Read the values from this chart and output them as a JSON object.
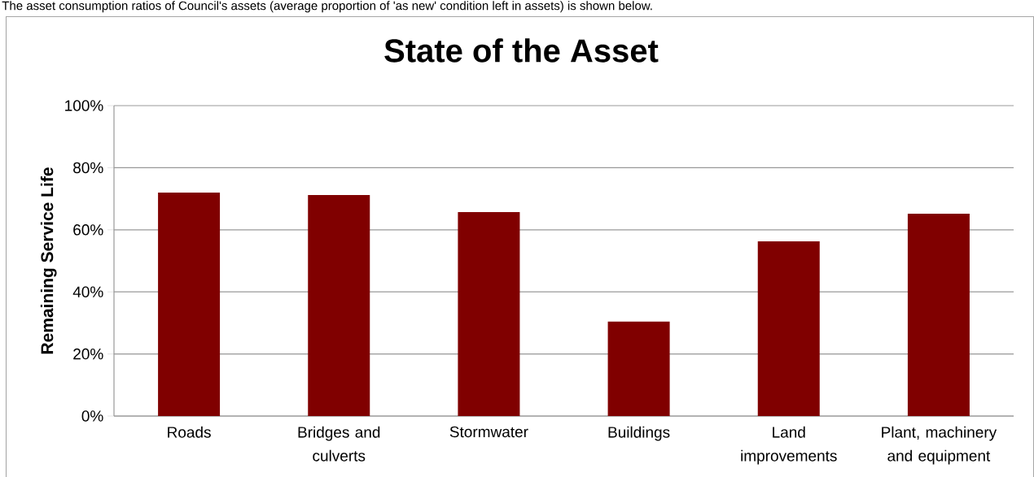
{
  "chart_data": {
    "type": "bar",
    "title": "State of the Asset",
    "ylabel": "Remaining Service Life",
    "annotations": [
      "The asset consumption ratios of Council's assets (average proportion of 'as new' condition left in assets) is shown below."
    ],
    "categories": [
      "Roads",
      "Bridges and culverts",
      "Stormwater",
      "Buildings",
      "Land improvements",
      "Plant, machinery and equipment"
    ],
    "values": [
      72.0,
      71.2,
      65.7,
      30.4,
      56.3,
      65.2
    ],
    "color": "#800000",
    "ylim": [
      0,
      100
    ],
    "yticks": [
      {
        "value": 0,
        "label": "0%"
      },
      {
        "value": 20,
        "label": "20%"
      },
      {
        "value": 40,
        "label": "40%"
      },
      {
        "value": 60,
        "label": "60%"
      },
      {
        "value": 80,
        "label": "80%"
      },
      {
        "value": 100,
        "label": "100%"
      }
    ],
    "grid": "y"
  }
}
